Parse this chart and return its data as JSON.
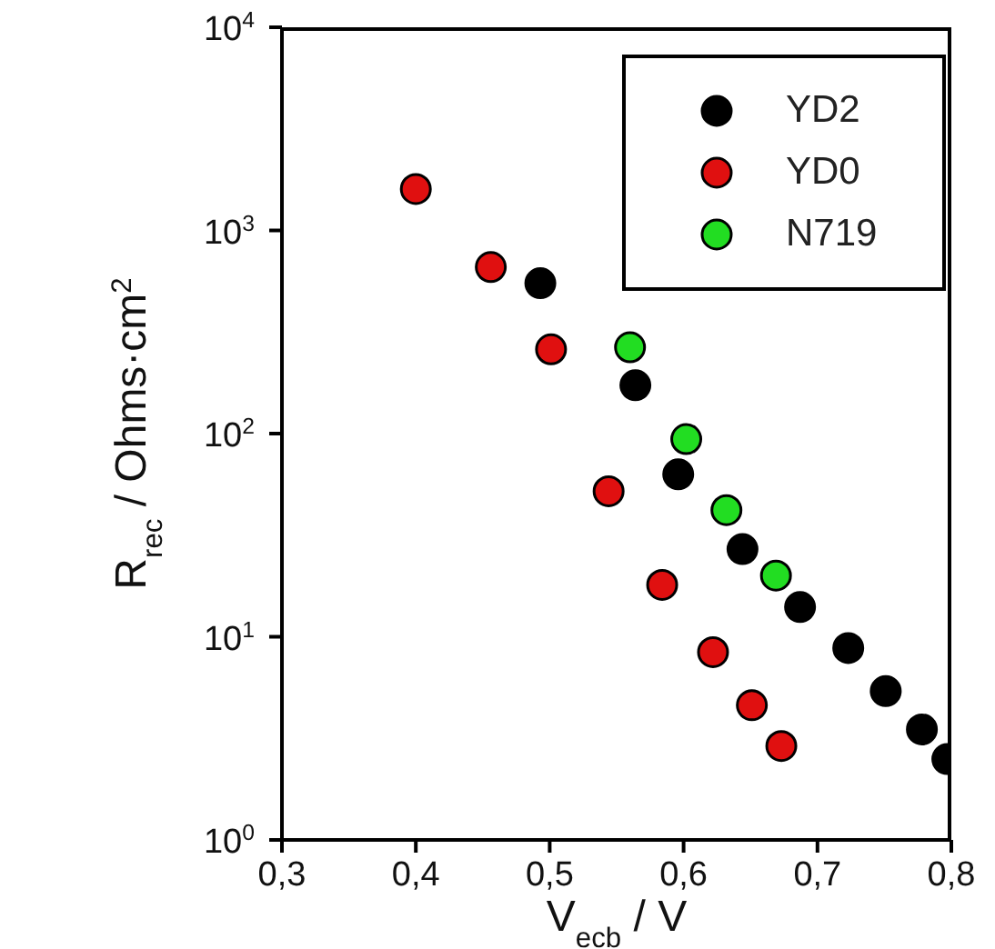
{
  "chart_data": {
    "type": "scatter",
    "xlabel": "V$_{ecb}$ / V",
    "ylabel": "R$_{rec}$ / Ohms·cm$^{2}$",
    "log": "y",
    "legend": "top right",
    "marker": "circle",
    "grid": false,
    "xlim": [
      0.3,
      0.8
    ],
    "xticks": [
      {
        "value": 0.3,
        "label": "0,3"
      },
      {
        "value": 0.4,
        "label": "0,4"
      },
      {
        "value": 0.5,
        "label": "0,5"
      },
      {
        "value": 0.6,
        "label": "0,6"
      },
      {
        "value": 0.7,
        "label": "0,7"
      },
      {
        "value": 0.8,
        "label": "0,8"
      }
    ],
    "ylim": [
      1,
      10000
    ],
    "yticks": [
      {
        "value": 1,
        "label": "10$^{0}$"
      },
      {
        "value": 10,
        "label": "10$^{1}$"
      },
      {
        "value": 100,
        "label": "10$^{2}$"
      },
      {
        "value": 1000,
        "label": "10$^{3}$"
      },
      {
        "value": 10000,
        "label": "10$^{4}$"
      }
    ],
    "series": [
      {
        "name": "YD2",
        "color": "#000000",
        "x": [
          0.493,
          0.564,
          0.596,
          0.644,
          0.687,
          0.723,
          0.751,
          0.778,
          0.797
        ],
        "values": [
          550,
          173,
          63,
          27,
          14,
          8.8,
          5.4,
          3.5,
          2.5
        ]
      },
      {
        "name": "YD0",
        "color": "#e01010",
        "x": [
          0.4,
          0.456,
          0.501,
          0.544,
          0.584,
          0.622,
          0.651,
          0.673
        ],
        "values": [
          1600,
          660,
          260,
          52,
          18,
          8.4,
          4.6,
          2.9
        ]
      },
      {
        "name": "N719",
        "color": "#22dd22",
        "x": [
          0.56,
          0.602,
          0.632,
          0.669
        ],
        "values": [
          266,
          94,
          42,
          20
        ]
      }
    ]
  }
}
